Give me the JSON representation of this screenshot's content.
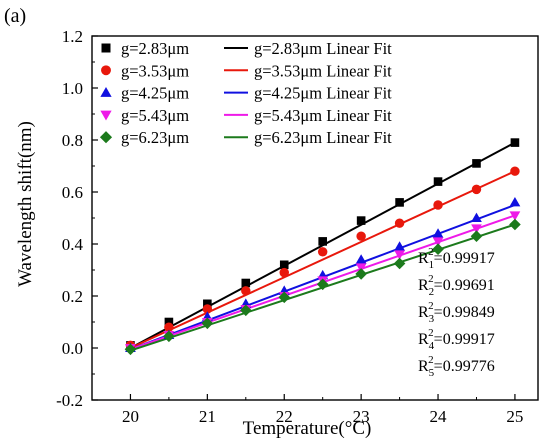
{
  "panel_label": "(a)",
  "chart_data": {
    "type": "scatter",
    "title": "",
    "xlabel": "Temperature(°C)",
    "ylabel": "Wavelength shift(nm)",
    "xlim": [
      19.5,
      25.3
    ],
    "ylim": [
      -0.2,
      1.2
    ],
    "xticks": [
      20,
      21,
      22,
      23,
      24,
      25
    ],
    "yticks": [
      -0.2,
      0.0,
      0.2,
      0.4,
      0.6,
      0.8,
      1.0,
      1.2
    ],
    "x": [
      20,
      20.5,
      21,
      21.5,
      22,
      22.5,
      23,
      23.5,
      24,
      24.5,
      25
    ],
    "series": [
      {
        "name": "g=2.83μm",
        "fit_name": "g=2.83μm Linear Fit",
        "color": "#000000",
        "marker": "square",
        "values": [
          0.01,
          0.1,
          0.17,
          0.25,
          0.32,
          0.41,
          0.49,
          0.56,
          0.64,
          0.71,
          0.79
        ],
        "fit": [
          0.0,
          0.79
        ]
      },
      {
        "name": "g=3.53μm",
        "fit_name": "g=3.53μm Linear Fit",
        "color": "#e8180c",
        "marker": "circle",
        "values": [
          0.01,
          0.08,
          0.15,
          0.22,
          0.29,
          0.37,
          0.43,
          0.48,
          0.55,
          0.61,
          0.68
        ],
        "fit": [
          0.0,
          0.68
        ]
      },
      {
        "name": "g=4.25μm",
        "fit_name": "g=4.25μm Linear Fit",
        "color": "#1010e0",
        "marker": "triangle-up",
        "values": [
          0.0,
          0.05,
          0.12,
          0.17,
          0.22,
          0.28,
          0.34,
          0.39,
          0.44,
          0.5,
          0.56
        ],
        "fit": [
          -0.005,
          0.55
        ]
      },
      {
        "name": "g=5.43μm",
        "fit_name": "g=5.43μm Linear Fit",
        "color": "#ee1ae8",
        "marker": "triangle-down",
        "values": [
          0.0,
          0.05,
          0.1,
          0.15,
          0.2,
          0.26,
          0.31,
          0.36,
          0.41,
          0.46,
          0.51
        ],
        "fit": [
          -0.005,
          0.51
        ]
      },
      {
        "name": "g=6.23μm",
        "fit_name": "g=6.23μm Linear Fit",
        "color": "#1c7a1c",
        "marker": "diamond",
        "values": [
          -0.005,
          0.045,
          0.095,
          0.145,
          0.195,
          0.245,
          0.285,
          0.325,
          0.38,
          0.43,
          0.475
        ],
        "fit": [
          -0.01,
          0.475
        ]
      }
    ],
    "legend_position": "top-left",
    "annotations": [
      {
        "label": "R",
        "sub": "1",
        "sup": "2",
        "value": "=0.99917"
      },
      {
        "label": "R",
        "sub": "2",
        "sup": "2",
        "value": "=0.99691"
      },
      {
        "label": "R",
        "sub": "3",
        "sup": "2",
        "value": "=0.99849"
      },
      {
        "label": "R",
        "sub": "4",
        "sup": "2",
        "value": "=0.99917"
      },
      {
        "label": "R",
        "sub": "5",
        "sup": "2",
        "value": "=0.99776"
      }
    ]
  }
}
